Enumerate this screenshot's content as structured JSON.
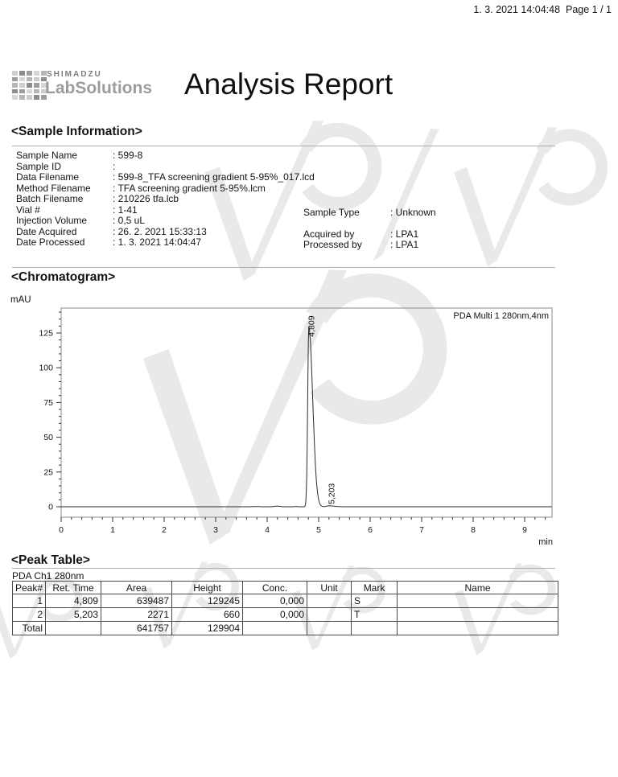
{
  "page": {
    "header_right": "1. 3. 2021 14:04:48  Page 1 / 1"
  },
  "icons": {
    "brand_mark": "shimadzu-grid-icon",
    "watermark": "vp-logo-watermark"
  },
  "brand": {
    "shimadzu": "SHIMADZU",
    "labsolutions": "LabSolutions",
    "title": "Analysis Report"
  },
  "sample_information": {
    "heading": "<Sample Information>",
    "left_fields": [
      {
        "label": "Sample Name",
        "value": "599-8"
      },
      {
        "label": "Sample ID",
        "value": ""
      },
      {
        "label": "Data Filename",
        "value": "599-8_TFA screening gradient 5-95%_017.lcd"
      },
      {
        "label": "Method Filename",
        "value": "TFA screening gradient 5-95%.lcm"
      },
      {
        "label": "Batch Filename",
        "value": "210226 tfa.lcb"
      },
      {
        "label": "Vial #",
        "value": "1-41"
      },
      {
        "label": "Injection Volume",
        "value": "0,5 uL"
      },
      {
        "label": "Date Acquired",
        "value": "26. 2. 2021 15:33:13"
      },
      {
        "label": "Date Processed",
        "value": "1. 3. 2021 14:04:47"
      }
    ],
    "right_fields": [
      {
        "label": "Sample Type",
        "value": "Unknown",
        "row": 5
      },
      {
        "label": "Acquired by",
        "value": "LPA1",
        "row": 7
      },
      {
        "label": "Processed by",
        "value": "LPA1",
        "row": 8
      }
    ]
  },
  "chromatogram": {
    "heading": "<Chromatogram>"
  },
  "chart_data": {
    "type": "line",
    "title": "",
    "xlabel": "min",
    "ylabel": "mAU",
    "legend": [
      "PDA Multi 1 280nm,4nm"
    ],
    "legend_position": "top-right",
    "grid": false,
    "xlim": [
      0,
      9.53
    ],
    "ylim": [
      -8,
      142
    ],
    "xticks": [
      0,
      1,
      2,
      3,
      4,
      5,
      6,
      7,
      8,
      9
    ],
    "yticks": [
      0,
      25,
      50,
      75,
      100,
      125
    ],
    "x_minor_step": 0.2,
    "y_minor_step": 5,
    "series": [
      {
        "name": "PDA Multi 1 280nm,4nm",
        "baseline_mau": 0,
        "peaks": [
          {
            "rt": 4.809,
            "height_mau": 129.245,
            "sigma_left": 0.022,
            "sigma_right": 0.075,
            "label": "4,809"
          },
          {
            "rt": 5.203,
            "height_mau": 0.66,
            "sigma_left": 0.05,
            "sigma_right": 0.1,
            "label": "5,203"
          }
        ]
      }
    ]
  },
  "peak_table": {
    "heading": "<Peak Table>",
    "subtitle": "PDA Ch1 280nm",
    "columns": [
      "Peak#",
      "Ret. Time",
      "Area",
      "Height",
      "Conc.",
      "Unit",
      "Mark",
      "Name"
    ],
    "rows": [
      [
        "1",
        "4,809",
        "639487",
        "129245",
        "0,000",
        "",
        "S",
        ""
      ],
      [
        "2",
        "5,203",
        "2271",
        "660",
        "0,000",
        "",
        "T",
        ""
      ],
      [
        "Total",
        "",
        "641757",
        "129904",
        "",
        "",
        "",
        ""
      ]
    ]
  }
}
